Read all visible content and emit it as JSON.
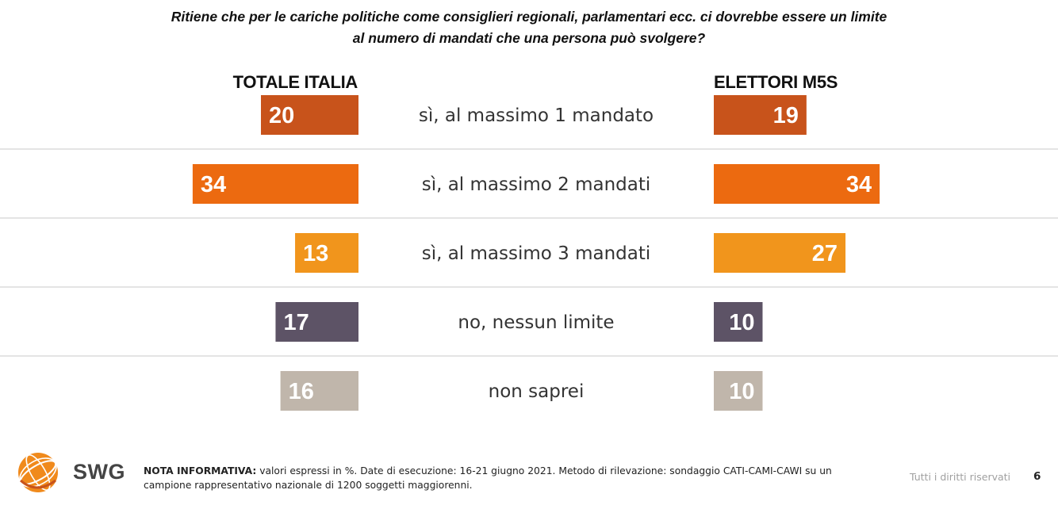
{
  "question": {
    "line1": "Ritiene che per le cariche politiche come consiglieri regionali, parlamentari ecc. ci dovrebbe essere un limite",
    "line2": "al numero di mandati che una persona può svolgere?"
  },
  "chart_data": {
    "type": "bar",
    "orientation": "horizontal",
    "layout": "butterfly",
    "categories": [
      "sì, al massimo 1 mandato",
      "sì, al massimo 2 mandati",
      "sì, al massimo 3 mandati",
      "no, nessun limite",
      "non saprei"
    ],
    "category_colors": [
      "#c8531b",
      "#ec6a10",
      "#f1951c",
      "#5d5366",
      "#c0b6ab"
    ],
    "series": [
      {
        "name": "TOTALE ITALIA",
        "values": [
          20,
          34,
          13,
          17,
          16
        ]
      },
      {
        "name": "ELETTORI M5S",
        "values": [
          19,
          34,
          27,
          10,
          10
        ]
      }
    ],
    "xlim": [
      0,
      34
    ],
    "grid": false,
    "row_separators": true
  },
  "footer": {
    "logo_text": "SWG",
    "note_label": "NOTA INFORMATIVA:",
    "note_text": " valori espressi in %. Date di esecuzione: 16-21 giugno 2021. Metodo di rilevazione: sondaggio CATI-CAMI-CAWI su un campione rappresentativo nazionale di 1200 soggetti maggiorenni.",
    "rights": "Tutti i diritti riservati",
    "page_number": "6"
  }
}
